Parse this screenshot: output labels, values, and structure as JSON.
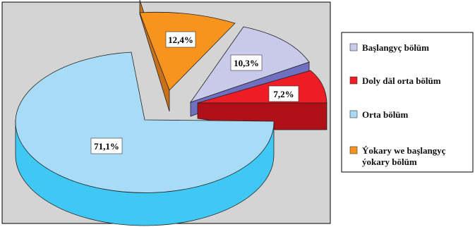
{
  "chart_data": {
    "type": "pie",
    "style": "3d-exploded",
    "legend_position": "right",
    "slices": [
      {
        "label": "Başlangyç bölüm",
        "value_text": "10,3%",
        "value": 10.3,
        "color": "#c9c9ea",
        "side": "#7070c0"
      },
      {
        "label": "Doly däl orta bölüm",
        "value_text": "7,2%",
        "value": 7.2,
        "color": "#ee1c24",
        "side": "#b01018"
      },
      {
        "label": "Orta bölüm",
        "value_text": "71,1%",
        "value": 71.1,
        "color": "#a8dcf6",
        "side": "#40c8f4"
      },
      {
        "label": "Ýokary we başlangyç ýokary bölüm",
        "label_lines": [
          "Ýokary we başlangyç",
          "ýokary bölüm"
        ],
        "value_text": "12,4%",
        "value": 12.4,
        "color": "#f7941d",
        "side": "#c8701a"
      }
    ]
  }
}
